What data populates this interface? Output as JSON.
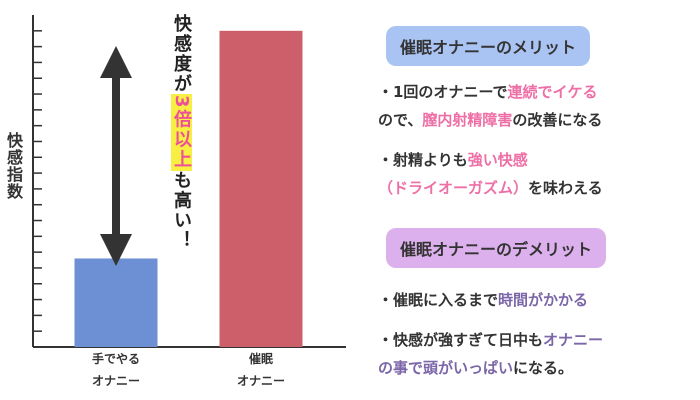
{
  "chart_data": {
    "type": "bar",
    "categories": [
      "手でやる\nオナニー",
      "催眠\nオナニー"
    ],
    "values": [
      28,
      100
    ],
    "ylabel": "快感指数",
    "ylim": [
      0,
      105
    ],
    "grid": false,
    "bar_colors": [
      "#6d8fd3",
      "#cd5f6a"
    ],
    "annotation": {
      "before": "快感度が",
      "highlight": "3倍以上",
      "after": "も高い！",
      "arrow": "double-headed vertical arrow between bars"
    }
  },
  "merit": {
    "title": "催眠オナニーのメリット",
    "p1": {
      "l1a": "・1回のオナニーで",
      "l1b": "連続でイケる",
      "l2a": "ので、",
      "l2b": "膣内射精障害",
      "l2c": "の改善になる"
    },
    "p2": {
      "l1a": "・射精よりも",
      "l1b": "強い快感",
      "l2a": "（ドライオーガズム）",
      "l2b": "を味わえる"
    }
  },
  "demerit": {
    "title": "催眠オナニーのデメリット",
    "p1": {
      "a": "・催眠に入るまで",
      "b": "時間がかかる"
    },
    "p2": {
      "l1a": "・快感が強すぎて日中も",
      "l1b": "オナニー",
      "l2a": "の事で頭がいっぱい",
      "l2b": "になる。"
    }
  },
  "colors": {
    "accent_pink": "#ee6fa6",
    "accent_purple": "#7b66a8",
    "highlight_yellow": "#f8ef43"
  }
}
